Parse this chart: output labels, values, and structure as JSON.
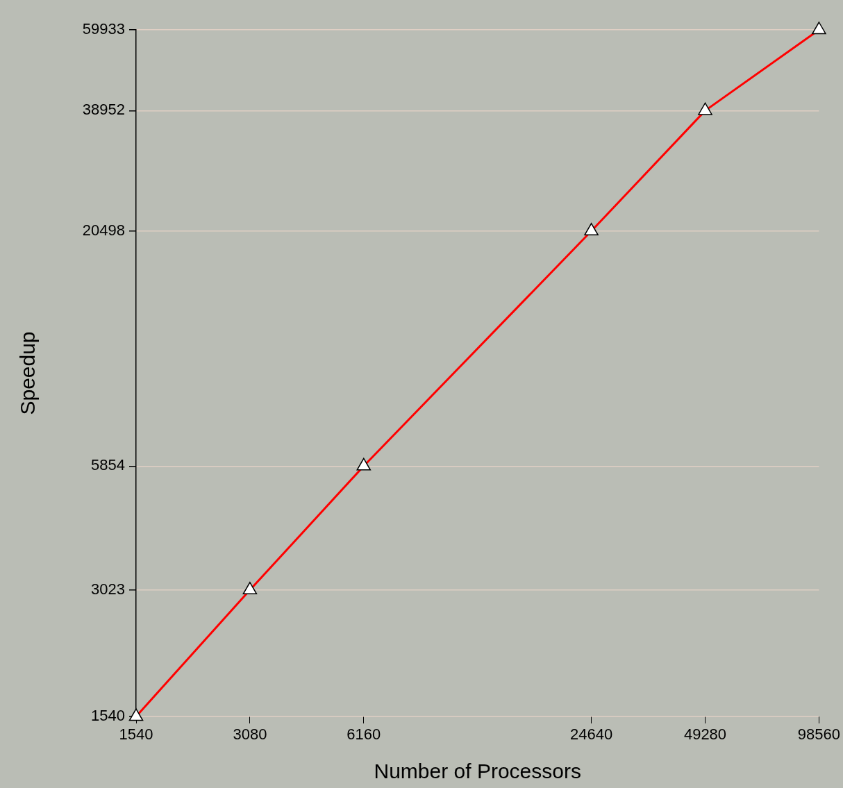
{
  "chart_data": {
    "type": "line",
    "xlabel": "Number of Processors",
    "ylabel": "Speedup",
    "log": "xy",
    "x": [
      1540,
      3080,
      6160,
      24640,
      49280,
      98560
    ],
    "series": [
      {
        "color": "#ff0000",
        "values": [
          1540,
          3023,
          5854,
          20498,
          38952,
          59933
        ]
      }
    ],
    "xlim": [
      1540,
      98560
    ],
    "xticks": [
      1540,
      3080,
      6160,
      24640,
      49280,
      98560
    ],
    "ylim": [
      1540,
      59933
    ],
    "yticks": [
      1540,
      3023,
      5854,
      20498,
      38952,
      59933
    ],
    "grid": "y",
    "legend": false,
    "marker": "triangle",
    "line_style": "solid"
  }
}
